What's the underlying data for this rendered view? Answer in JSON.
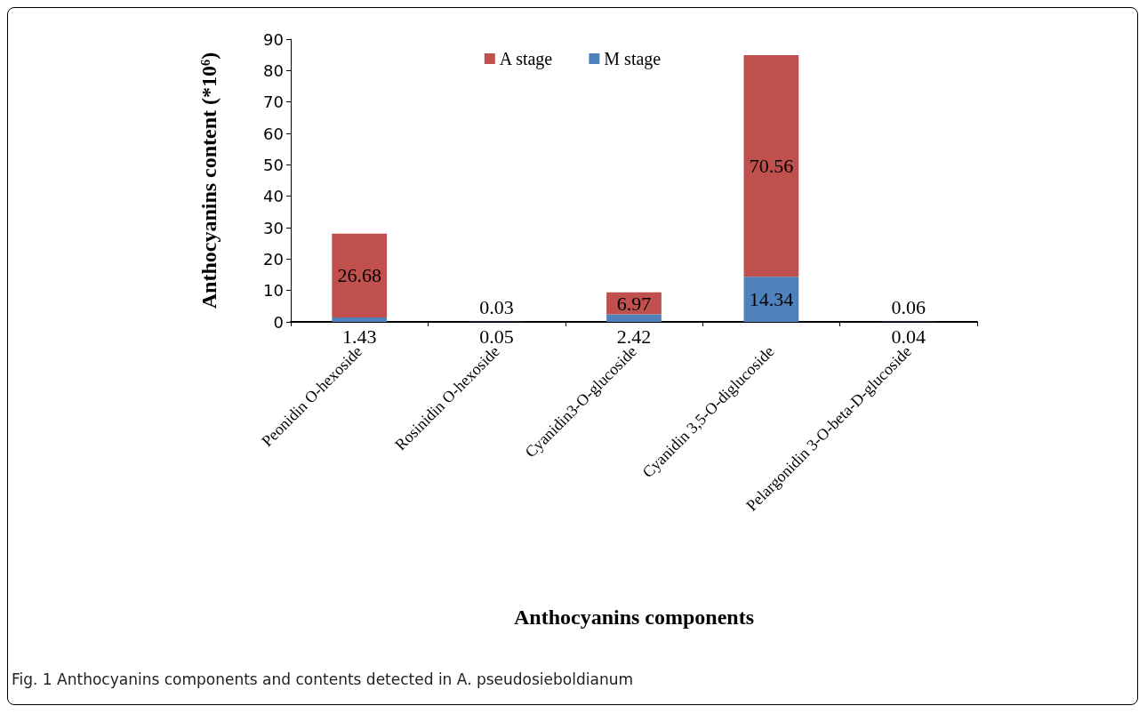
{
  "chart_data": {
    "type": "bar",
    "stacked": true,
    "xlabel": "Anthocyanins components",
    "ylabel": "Anthocyanins content (*10⁶)",
    "categories": [
      "Peonidin O-hexoside",
      "Rosinidin O-hexoside",
      "Cyanidin3-O-glucoside",
      "Cyanidin 3,5-O-diglucoside",
      "Pelargonidin 3-O-beta-D-glucoside"
    ],
    "series": [
      {
        "name": "M stage",
        "color": "#4f81bd",
        "values": [
          1.43,
          0.05,
          2.42,
          14.34,
          0.04
        ]
      },
      {
        "name": "A stage",
        "color": "#c0504d",
        "values": [
          26.68,
          0.03,
          6.97,
          70.56,
          0.06
        ]
      }
    ],
    "ylim": [
      0,
      90
    ],
    "yticks": [
      0,
      10,
      20,
      30,
      40,
      50,
      60,
      70,
      80,
      90
    ],
    "grid": false,
    "legend": "top",
    "data_labels": true,
    "annotations": [
      "Fig. 1 Anthocyanins components and contents detected in A. pseudosieboldianum"
    ]
  }
}
